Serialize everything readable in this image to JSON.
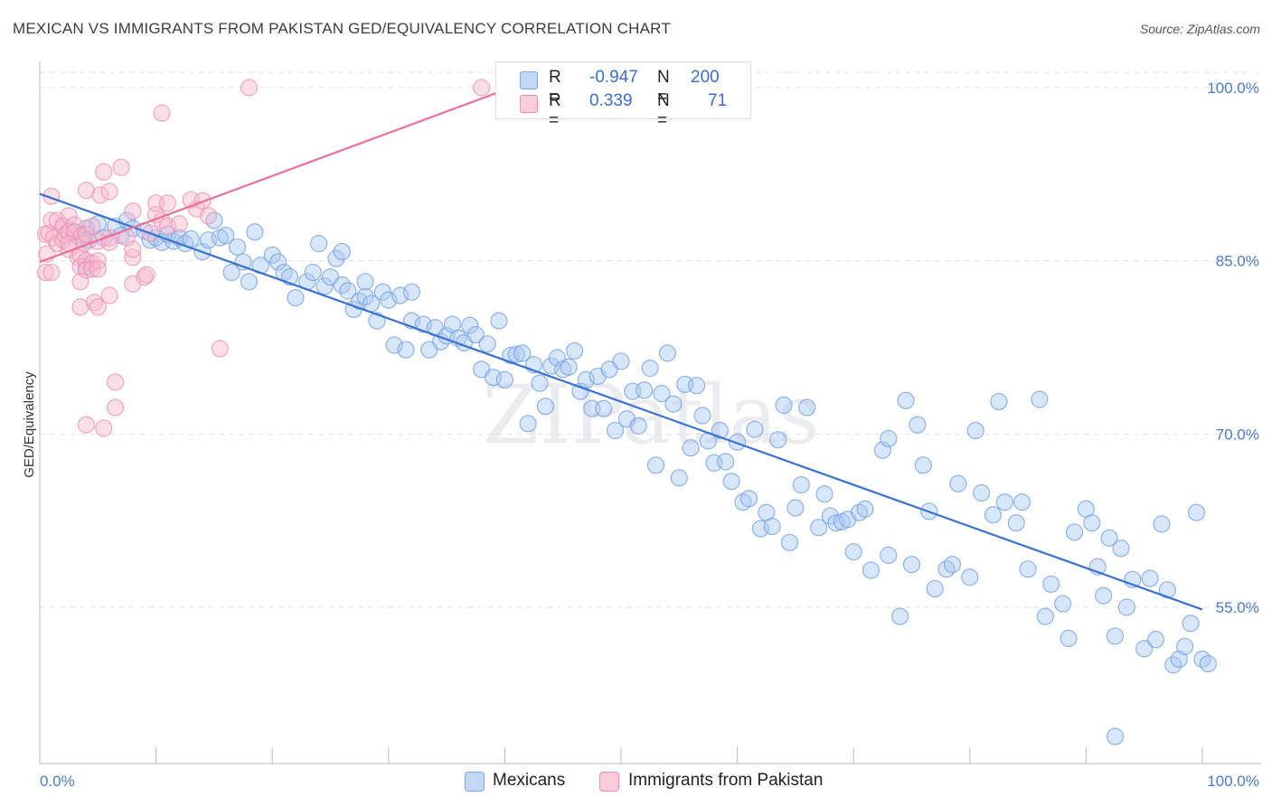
{
  "title": "MEXICAN VS IMMIGRANTS FROM PAKISTAN GED/EQUIVALENCY CORRELATION CHART",
  "source": "Source: ZipAtlas.com",
  "watermark": "ZIPatlas",
  "legend": {
    "rows": [
      {
        "r_label": "R =",
        "r_value": "-0.947",
        "n_label": "N =",
        "n_value": "200",
        "color": "#a9c8f2"
      },
      {
        "r_label": "R =",
        "r_value": "0.339",
        "n_label": "N =",
        "n_value": "71",
        "color": "#f7b8cc"
      }
    ]
  },
  "bottom_legend": [
    {
      "label": "Mexicans",
      "color": "#a9c8f2"
    },
    {
      "label": "Immigrants from Pakistan",
      "color": "#f7b8cc"
    }
  ],
  "chart_data": {
    "type": "scatter",
    "ylabel": "GED/Equivalency",
    "xlabel": "",
    "x_tick_labels": [
      "0.0%",
      "100.0%"
    ],
    "y_tick_labels": [
      "100.0%",
      "85.0%",
      "70.0%",
      "55.0%"
    ],
    "y_ticks": [
      100,
      85,
      70,
      55
    ],
    "xlim": [
      0,
      100
    ],
    "ylim": [
      41,
      102
    ],
    "grid": "horizontal dashed",
    "colors": {
      "blue": "#4a7cc9",
      "blue_fill": "#a9c8f2",
      "pink": "#e35f8c",
      "pink_fill": "#f7b8cc",
      "blue_line": "#3a72d0",
      "pink_line": "#e8729a"
    },
    "series": [
      {
        "name": "Mexicans",
        "trend": {
          "x": [
            0,
            100
          ],
          "y": [
            90.8,
            54.8
          ]
        },
        "points": [
          [
            2,
            88
          ],
          [
            3,
            87.5
          ],
          [
            4,
            87.8
          ],
          [
            3.5,
            87
          ],
          [
            4,
            87.3
          ],
          [
            4.2,
            86.8
          ],
          [
            4,
            84.5
          ],
          [
            5,
            88.2
          ],
          [
            5.5,
            87
          ],
          [
            6.5,
            88
          ],
          [
            7,
            87.2
          ],
          [
            7.5,
            88.5
          ],
          [
            8,
            87.8
          ],
          [
            9,
            87.6
          ],
          [
            9.5,
            86.8
          ],
          [
            10,
            87
          ],
          [
            10.5,
            86.6
          ],
          [
            11,
            87.3
          ],
          [
            11.5,
            86.7
          ],
          [
            12,
            87
          ],
          [
            12.5,
            86.5
          ],
          [
            13,
            86.9
          ],
          [
            14,
            85.8
          ],
          [
            14.5,
            86.8
          ],
          [
            15,
            88.5
          ],
          [
            15.5,
            87
          ],
          [
            16,
            87.2
          ],
          [
            16.5,
            84
          ],
          [
            17,
            86.2
          ],
          [
            17.5,
            84.9
          ],
          [
            18,
            83.2
          ],
          [
            18.5,
            87.5
          ],
          [
            19,
            84.6
          ],
          [
            20,
            85.5
          ],
          [
            20.5,
            84.9
          ],
          [
            21,
            84
          ],
          [
            21.5,
            83.6
          ],
          [
            22,
            81.8
          ],
          [
            23,
            83.2
          ],
          [
            23.5,
            84
          ],
          [
            24,
            86.5
          ],
          [
            24.5,
            82.8
          ],
          [
            25,
            83.6
          ],
          [
            25.5,
            85.2
          ],
          [
            26,
            82.9
          ],
          [
            26.5,
            82.4
          ],
          [
            26,
            85.8
          ],
          [
            27,
            80.8
          ],
          [
            27.5,
            81.5
          ],
          [
            28,
            81.9
          ],
          [
            28,
            83.2
          ],
          [
            28.5,
            81.3
          ],
          [
            29,
            79.8
          ],
          [
            29.5,
            82.3
          ],
          [
            30,
            81.6
          ],
          [
            30.5,
            77.7
          ],
          [
            31,
            82
          ],
          [
            31.5,
            77.3
          ],
          [
            32,
            82.3
          ],
          [
            32,
            79.8
          ],
          [
            33,
            79.5
          ],
          [
            33.5,
            77.3
          ],
          [
            34,
            79.2
          ],
          [
            34.5,
            78
          ],
          [
            35,
            78.5
          ],
          [
            35.5,
            79.5
          ],
          [
            36,
            78.3
          ],
          [
            36.5,
            77.9
          ],
          [
            37,
            79.4
          ],
          [
            37.5,
            78.6
          ],
          [
            38,
            75.6
          ],
          [
            38.5,
            77.8
          ],
          [
            39,
            74.9
          ],
          [
            39.5,
            79.8
          ],
          [
            40,
            74.7
          ],
          [
            40.5,
            76.8
          ],
          [
            41,
            76.9
          ],
          [
            41.5,
            77
          ],
          [
            42,
            70.9
          ],
          [
            42.5,
            76
          ],
          [
            43,
            74.4
          ],
          [
            43.5,
            72.4
          ],
          [
            44,
            75.9
          ],
          [
            44.5,
            76.6
          ],
          [
            45,
            75.6
          ],
          [
            45.5,
            75.8
          ],
          [
            46,
            77.2
          ],
          [
            46.5,
            73.7
          ],
          [
            47,
            74.7
          ],
          [
            47.5,
            72.2
          ],
          [
            48,
            75
          ],
          [
            48.5,
            72.2
          ],
          [
            49,
            75.6
          ],
          [
            49.5,
            70.3
          ],
          [
            50,
            76.3
          ],
          [
            50.5,
            71.3
          ],
          [
            51,
            73.7
          ],
          [
            51.5,
            70.7
          ],
          [
            52,
            73.8
          ],
          [
            52.5,
            75.7
          ],
          [
            53,
            67.3
          ],
          [
            53.5,
            73.5
          ],
          [
            54,
            77
          ],
          [
            54.5,
            72.6
          ],
          [
            55,
            66.2
          ],
          [
            55.5,
            74.3
          ],
          [
            56,
            68.8
          ],
          [
            56.5,
            74.2
          ],
          [
            57,
            71.6
          ],
          [
            57.5,
            69.4
          ],
          [
            58,
            67.5
          ],
          [
            58.5,
            70.3
          ],
          [
            59,
            67.6
          ],
          [
            59.5,
            65.9
          ],
          [
            60,
            69.3
          ],
          [
            60.5,
            64.1
          ],
          [
            61,
            64.4
          ],
          [
            61.5,
            70.4
          ],
          [
            62,
            61.8
          ],
          [
            62.5,
            63.2
          ],
          [
            63,
            62
          ],
          [
            63.5,
            69.5
          ],
          [
            64,
            72.5
          ],
          [
            64.5,
            60.6
          ],
          [
            65,
            63.6
          ],
          [
            65.5,
            65.6
          ],
          [
            66,
            72.3
          ],
          [
            67,
            61.9
          ],
          [
            67.5,
            64.8
          ],
          [
            68,
            62.9
          ],
          [
            68.5,
            62.3
          ],
          [
            69,
            62.4
          ],
          [
            69.5,
            62.6
          ],
          [
            70,
            59.8
          ],
          [
            70.5,
            63.2
          ],
          [
            71,
            63.5
          ],
          [
            71.5,
            58.2
          ],
          [
            72.5,
            68.6
          ],
          [
            73,
            69.6
          ],
          [
            73,
            59.5
          ],
          [
            74,
            54.2
          ],
          [
            74.5,
            72.9
          ],
          [
            75,
            58.7
          ],
          [
            75.5,
            70.8
          ],
          [
            76,
            67.3
          ],
          [
            76.5,
            63.3
          ],
          [
            77,
            56.6
          ],
          [
            78,
            58.3
          ],
          [
            78.5,
            58.7
          ],
          [
            79,
            65.7
          ],
          [
            80,
            57.6
          ],
          [
            80.5,
            70.3
          ],
          [
            81,
            64.9
          ],
          [
            82,
            63
          ],
          [
            82.5,
            72.8
          ],
          [
            83,
            64.1
          ],
          [
            84,
            62.3
          ],
          [
            84.5,
            64.1
          ],
          [
            85,
            58.3
          ],
          [
            86,
            73
          ],
          [
            86.5,
            54.2
          ],
          [
            87,
            57
          ],
          [
            88,
            55.3
          ],
          [
            88.5,
            52.3
          ],
          [
            89,
            61.5
          ],
          [
            90,
            63.5
          ],
          [
            90.5,
            62.3
          ],
          [
            91,
            58.5
          ],
          [
            91.5,
            56
          ],
          [
            92,
            61
          ],
          [
            92.5,
            52.5
          ],
          [
            93,
            60.1
          ],
          [
            93.5,
            55
          ],
          [
            94,
            57.4
          ],
          [
            95,
            51.4
          ],
          [
            95.5,
            57.5
          ],
          [
            96,
            52.2
          ],
          [
            96.5,
            62.2
          ],
          [
            97,
            56.5
          ],
          [
            97.5,
            50
          ],
          [
            98,
            50.5
          ],
          [
            98.5,
            51.6
          ],
          [
            99,
            53.6
          ],
          [
            99.5,
            63.2
          ],
          [
            100,
            50.5
          ],
          [
            100.5,
            50.1
          ],
          [
            92.5,
            43.8
          ]
        ]
      },
      {
        "name": "Immigrants from Pakistan",
        "trend": {
          "x": [
            0,
            40
          ],
          "y": [
            84.9,
            99.8
          ]
        },
        "points": [
          [
            0.5,
            87.3
          ],
          [
            0.5,
            84
          ],
          [
            0.6,
            85.6
          ],
          [
            0.8,
            87.4
          ],
          [
            1,
            90.6
          ],
          [
            1,
            88.5
          ],
          [
            1.2,
            87
          ],
          [
            1.5,
            86.5
          ],
          [
            1.5,
            88.5
          ],
          [
            2,
            88
          ],
          [
            2,
            86.8
          ],
          [
            2.2,
            87.2
          ],
          [
            2.5,
            88.9
          ],
          [
            2.5,
            87.5
          ],
          [
            2.5,
            86
          ],
          [
            3,
            88.1
          ],
          [
            3,
            87.5
          ],
          [
            3.3,
            85.3
          ],
          [
            3.5,
            85.5
          ],
          [
            3.5,
            84.5
          ],
          [
            3.5,
            83.2
          ],
          [
            3.5,
            81
          ],
          [
            3.6,
            87.2
          ],
          [
            3.8,
            86.5
          ],
          [
            4,
            91.1
          ],
          [
            4,
            87.3
          ],
          [
            4,
            85
          ],
          [
            4,
            84.2
          ],
          [
            4,
            70.8
          ],
          [
            4.5,
            88
          ],
          [
            4.5,
            84.8
          ],
          [
            4.5,
            84.3
          ],
          [
            4.7,
            81.4
          ],
          [
            5,
            86.7
          ],
          [
            5,
            85
          ],
          [
            5,
            84.3
          ],
          [
            5,
            81
          ],
          [
            5.2,
            90.7
          ],
          [
            5.5,
            92.7
          ],
          [
            5.5,
            70.5
          ],
          [
            6,
            91
          ],
          [
            6,
            87
          ],
          [
            6,
            86.6
          ],
          [
            6,
            82
          ],
          [
            6.5,
            74.5
          ],
          [
            6.5,
            72.3
          ],
          [
            7,
            93.1
          ],
          [
            7.5,
            87
          ],
          [
            8,
            83
          ],
          [
            8,
            85.3
          ],
          [
            8,
            89.3
          ],
          [
            8,
            86
          ],
          [
            9,
            83.6
          ],
          [
            9.2,
            83.8
          ],
          [
            9.5,
            87.4
          ],
          [
            10,
            89
          ],
          [
            10,
            90
          ],
          [
            11,
            90
          ],
          [
            10.5,
            88.5
          ],
          [
            11,
            88
          ],
          [
            10.5,
            97.8
          ],
          [
            12,
            88.2
          ],
          [
            13.5,
            89.5
          ],
          [
            13,
            90.3
          ],
          [
            14,
            90.2
          ],
          [
            14.5,
            88.9
          ],
          [
            15.5,
            77.4
          ],
          [
            18,
            100
          ],
          [
            38,
            100
          ],
          [
            1,
            84
          ],
          [
            2.5,
            86.5
          ]
        ]
      }
    ]
  }
}
